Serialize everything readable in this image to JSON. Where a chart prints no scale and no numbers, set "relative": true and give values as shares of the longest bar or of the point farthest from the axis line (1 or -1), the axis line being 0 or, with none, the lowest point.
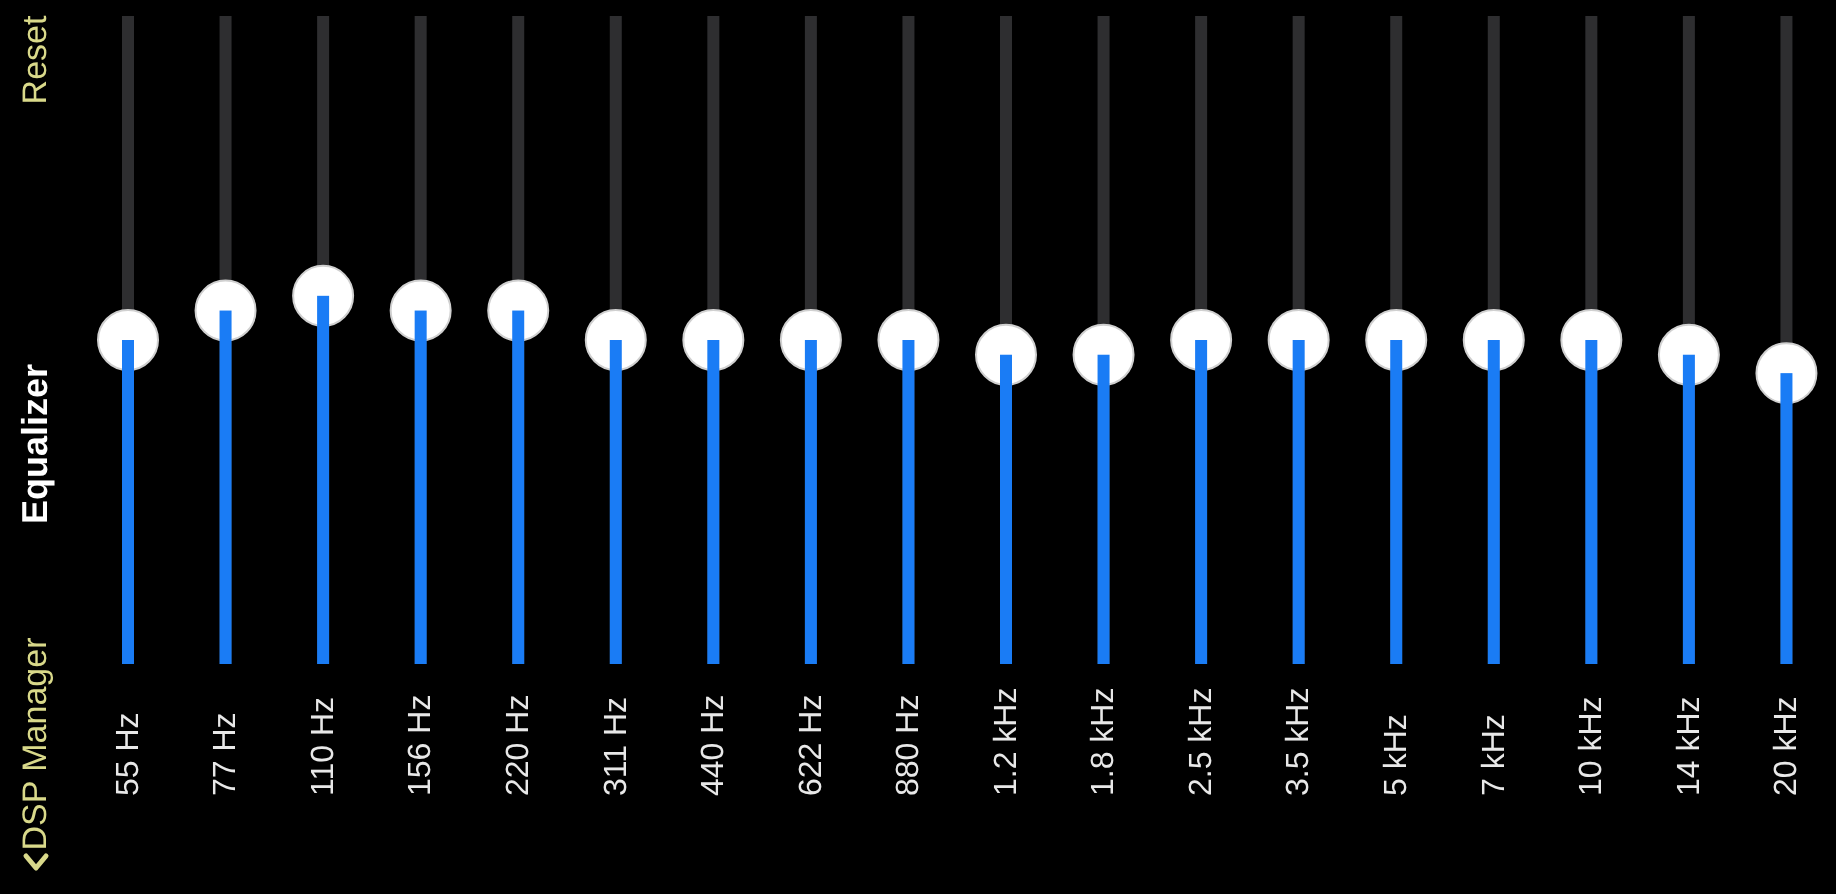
{
  "chart_data": {
    "type": "bar",
    "title": "Equalizer",
    "annotations": [
      "Reset",
      "DSP Manager"
    ],
    "relative": true,
    "categories": [
      "55 Hz",
      "77 Hz",
      "110 Hz",
      "156 Hz",
      "220 Hz",
      "311 Hz",
      "440 Hz",
      "622 Hz",
      "880 Hz",
      "1.2 kHz",
      "1.8 kHz",
      "2.5 kHz",
      "3.5 kHz",
      "5 kHz",
      "7 kHz",
      "10 kHz",
      "14 kHz",
      "20 kHz"
    ],
    "values": [
      0.88,
      0.96,
      1,
      0.96,
      0.96,
      0.88,
      0.88,
      0.88,
      0.88,
      0.84,
      0.84,
      0.88,
      0.88,
      0.88,
      0.88,
      0.88,
      0.84,
      0.79
    ],
    "color": "#1a7cf5",
    "grid": false
  }
}
